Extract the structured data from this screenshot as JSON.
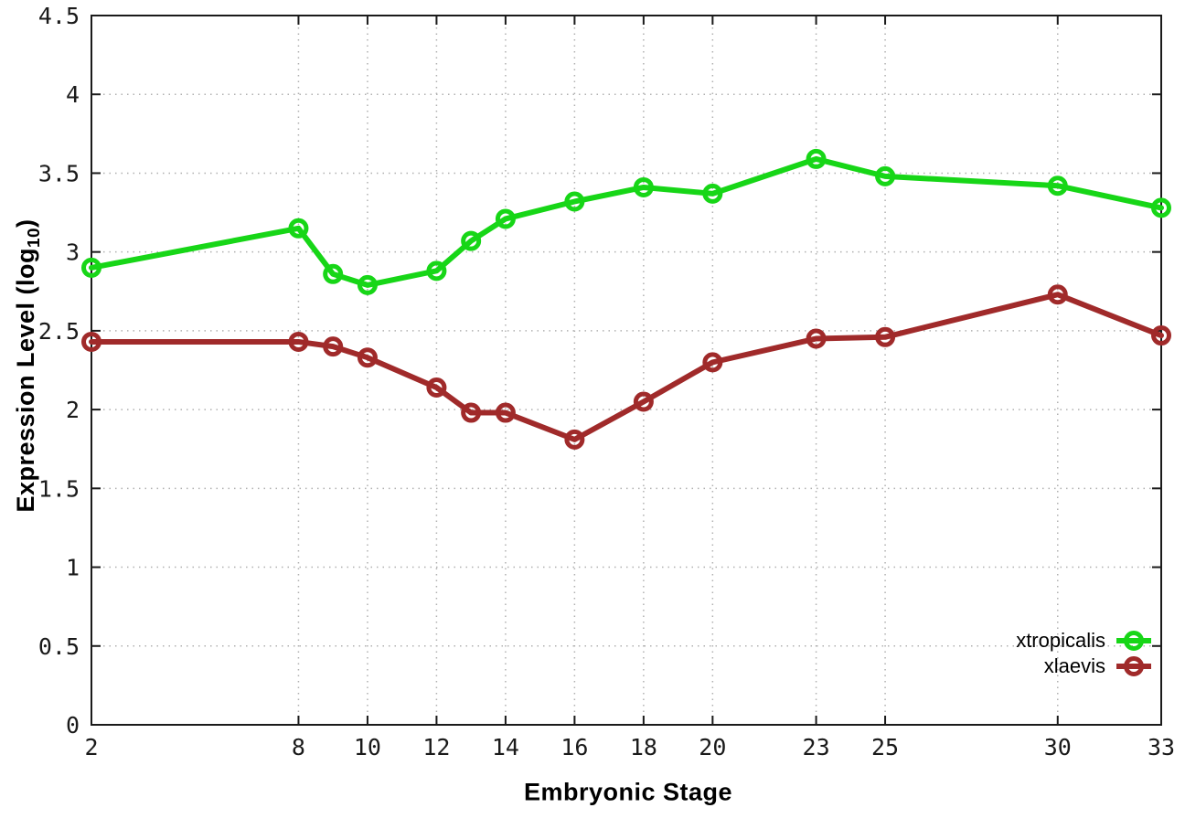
{
  "chart_data": {
    "type": "line",
    "xlabel": "Embryonic Stage",
    "ylabel": {
      "prefix": "Expression Level (log",
      "sub": "10",
      "suffix": ")"
    },
    "x": [
      2,
      8,
      9,
      10,
      12,
      13,
      14,
      16,
      18,
      20,
      23,
      25,
      30,
      33
    ],
    "series": [
      {
        "name": "xtropicalis",
        "color": "#17d617",
        "marker": "open-circle",
        "values": [
          2.9,
          3.15,
          2.86,
          2.79,
          2.88,
          3.07,
          3.21,
          3.32,
          3.41,
          3.37,
          3.59,
          3.48,
          3.42,
          3.28
        ]
      },
      {
        "name": "xlaevis",
        "color": "#a02a2a",
        "marker": "open-circle",
        "values": [
          2.43,
          2.43,
          2.4,
          2.33,
          2.14,
          1.98,
          1.98,
          1.81,
          2.05,
          2.3,
          2.45,
          2.46,
          2.73,
          2.47
        ]
      }
    ],
    "xlim": [
      2,
      33
    ],
    "ylim": [
      0,
      4.5
    ],
    "xticks": [
      2,
      8,
      10,
      12,
      14,
      16,
      18,
      20,
      23,
      25,
      30,
      33
    ],
    "xtick_labels": [
      "2",
      "8",
      "10",
      "12",
      "14",
      "16",
      "18",
      "20",
      "23",
      "25",
      "30",
      "33"
    ],
    "yticks": [
      0,
      0.5,
      1,
      1.5,
      2,
      2.5,
      3,
      3.5,
      4,
      4.5
    ],
    "ytick_labels": [
      "0",
      "0.5",
      "1",
      "1.5",
      "2",
      "2.5",
      "3",
      "3.5",
      "4",
      "4.5"
    ],
    "grid": true,
    "legend_position": "inside-bottom-right",
    "colors": {
      "border": "#1a1a1a",
      "gridline": "#b0b0b0",
      "tick_text": "#1a1a1a",
      "background": "#ffffff"
    }
  }
}
